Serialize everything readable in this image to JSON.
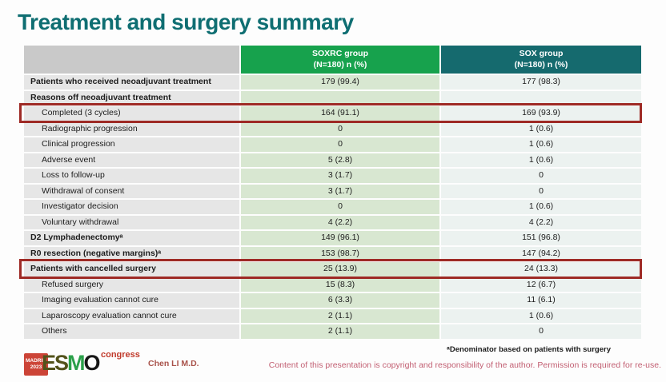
{
  "title": "Treatment and surgery summary",
  "table": {
    "columns": [
      {
        "name": "SOXRC",
        "line1": "SOXRC group",
        "line2": "(N=180) n (%)",
        "header_color": "#17a24d"
      },
      {
        "name": "SOX",
        "line1": "SOX group",
        "line2": "(N=180) n (%)",
        "header_color": "#156a6e"
      }
    ],
    "rows": [
      {
        "label": "Patients who received neoadjuvant treatment",
        "bold": true,
        "indent": false,
        "soxrc": "179 (99.4)",
        "sox": "177 (98.3)"
      },
      {
        "label": "Reasons off neoadjuvant treatment",
        "bold": true,
        "indent": false,
        "soxrc": "",
        "sox": ""
      },
      {
        "label": "Completed (3 cycles)",
        "bold": false,
        "indent": true,
        "soxrc": "164 (91.1)",
        "sox": "169 (93.9)",
        "highlighted": true
      },
      {
        "label": "Radiographic progression",
        "bold": false,
        "indent": true,
        "soxrc": "0",
        "sox": "1 (0.6)"
      },
      {
        "label": "Clinical progression",
        "bold": false,
        "indent": true,
        "soxrc": "0",
        "sox": "1 (0.6)"
      },
      {
        "label": "Adverse event",
        "bold": false,
        "indent": true,
        "soxrc": "5 (2.8)",
        "sox": "1 (0.6)"
      },
      {
        "label": "Loss to follow-up",
        "bold": false,
        "indent": true,
        "soxrc": "3 (1.7)",
        "sox": "0"
      },
      {
        "label": "Withdrawal of consent",
        "bold": false,
        "indent": true,
        "soxrc": "3 (1.7)",
        "sox": "0"
      },
      {
        "label": "Investigator decision",
        "bold": false,
        "indent": true,
        "soxrc": "0",
        "sox": "1 (0.6)"
      },
      {
        "label": "Voluntary withdrawal",
        "bold": false,
        "indent": true,
        "soxrc": "4 (2.2)",
        "sox": "4 (2.2)"
      },
      {
        "label": "D2 Lymphadenectomyᵃ",
        "bold": true,
        "indent": false,
        "soxrc": "149 (96.1)",
        "sox": "151 (96.8)"
      },
      {
        "label": "R0 resection (negative margins)ᵃ",
        "bold": true,
        "indent": false,
        "soxrc": "153 (98.7)",
        "sox": "147 (94.2)"
      },
      {
        "label": "Patients with cancelled surgery",
        "bold": true,
        "indent": false,
        "soxrc": "25 (13.9)",
        "sox": "24 (13.3)",
        "highlighted": true
      },
      {
        "label": "Refused surgery",
        "bold": false,
        "indent": true,
        "soxrc": "15 (8.3)",
        "sox": "12 (6.7)"
      },
      {
        "label": "Imaging evaluation cannot cure",
        "bold": false,
        "indent": true,
        "soxrc": "6 (3.3)",
        "sox": "11 (6.1)"
      },
      {
        "label": "Laparoscopy evaluation cannot cure",
        "bold": false,
        "indent": true,
        "soxrc": "2 (1.1)",
        "sox": "1 (0.6)"
      },
      {
        "label": "Others",
        "bold": false,
        "indent": true,
        "soxrc": "2 (1.1)",
        "sox": "0"
      }
    ]
  },
  "footer": {
    "logo": {
      "badge_line1": "MADRID",
      "badge_line2": "2023",
      "esmo_es": "ES",
      "esmo_m": "M",
      "esmo_o": "O",
      "congress": "congress"
    },
    "presenter": "Chen LI M.D.",
    "footnote": "ᵃDenominator based on patients with surgery",
    "copyright": "Content of this presentation is copyright and responsibility of the author. Permission is required for re-use."
  },
  "colors": {
    "title": "#0f6e72",
    "header_soxrc": "#17a24d",
    "header_sox": "#156a6e",
    "header_label_bg": "#c9c9c9",
    "label_cell_bg": "#e6e6e6",
    "soxrc_cell_bg": "#d8e7d1",
    "sox_cell_bg": "#ecf2f0",
    "highlight_border": "#9e2a25",
    "copyright_text": "#c25f72",
    "presenter_text": "#a9534b"
  }
}
